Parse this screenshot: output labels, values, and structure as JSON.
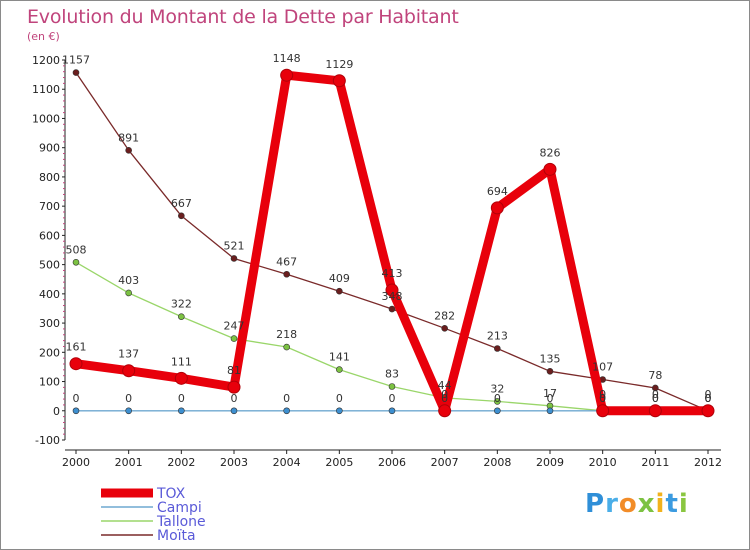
{
  "title": "Evolution du Montant de la Dette par Habitant",
  "subtitle": "(en €)",
  "brand": {
    "letters": [
      {
        "ch": "P",
        "color": "#2f8fd8"
      },
      {
        "ch": "r",
        "color": "#4aaee8"
      },
      {
        "ch": "o",
        "color": "#f28c28"
      },
      {
        "ch": "x",
        "color": "#7cc242"
      },
      {
        "ch": "i",
        "color": "#f2b21c"
      },
      {
        "ch": "t",
        "color": "#3b9be0"
      },
      {
        "ch": "i",
        "color": "#8ac640"
      }
    ]
  },
  "chart_data": {
    "type": "line",
    "x": [
      "2000",
      "2001",
      "2002",
      "2003",
      "2004",
      "2005",
      "2006",
      "2007",
      "2008",
      "2009",
      "2010",
      "2011",
      "2012"
    ],
    "ylim": [
      -100,
      1200
    ],
    "yticks": [
      "-100",
      "0",
      "100",
      "200",
      "300",
      "400",
      "500",
      "600",
      "700",
      "800",
      "900",
      "1000",
      "1100",
      "1200"
    ],
    "grid": false,
    "legend_position": "bottom-left",
    "series": [
      {
        "name": "TOX",
        "color": "#e8000b",
        "marker_fill": "#e8000b",
        "emphasis": true,
        "values": [
          161,
          137,
          111,
          81,
          1148,
          1129,
          413,
          0,
          694,
          826,
          0,
          0,
          0
        ],
        "labels": [
          "161",
          "137",
          "111",
          "81",
          "1148",
          "1129",
          "413",
          "0",
          "694",
          "826",
          "0",
          "0",
          "0"
        ]
      },
      {
        "name": "Campi",
        "color": "#6fa8d0",
        "marker_fill": "#3d8fd0",
        "emphasis": false,
        "values": [
          0,
          0,
          0,
          0,
          0,
          0,
          0,
          0,
          0,
          0,
          0,
          0,
          0
        ],
        "labels": [
          "0",
          "0",
          "0",
          "0",
          "0",
          "0",
          "0",
          "0",
          "0",
          "0",
          "0",
          "0",
          "0"
        ]
      },
      {
        "name": "Tallone",
        "color": "#9ad66a",
        "marker_fill": "#7cc242",
        "emphasis": false,
        "values": [
          508,
          403,
          322,
          247,
          218,
          141,
          83,
          44,
          32,
          17,
          0,
          0,
          0
        ],
        "labels": [
          "508",
          "403",
          "322",
          "247",
          "218",
          "141",
          "83",
          "44",
          "32",
          "17",
          "0",
          "0",
          "0"
        ]
      },
      {
        "name": "Moïta",
        "color": "#7a2a2a",
        "marker_fill": "#6a1e1e",
        "emphasis": false,
        "values": [
          1157,
          891,
          667,
          521,
          467,
          409,
          348,
          282,
          213,
          135,
          107,
          78,
          0
        ],
        "labels": [
          "1157",
          "891",
          "667",
          "521",
          "467",
          "409",
          "348",
          "282",
          "213",
          "135",
          "107",
          "78",
          "0"
        ]
      }
    ]
  }
}
